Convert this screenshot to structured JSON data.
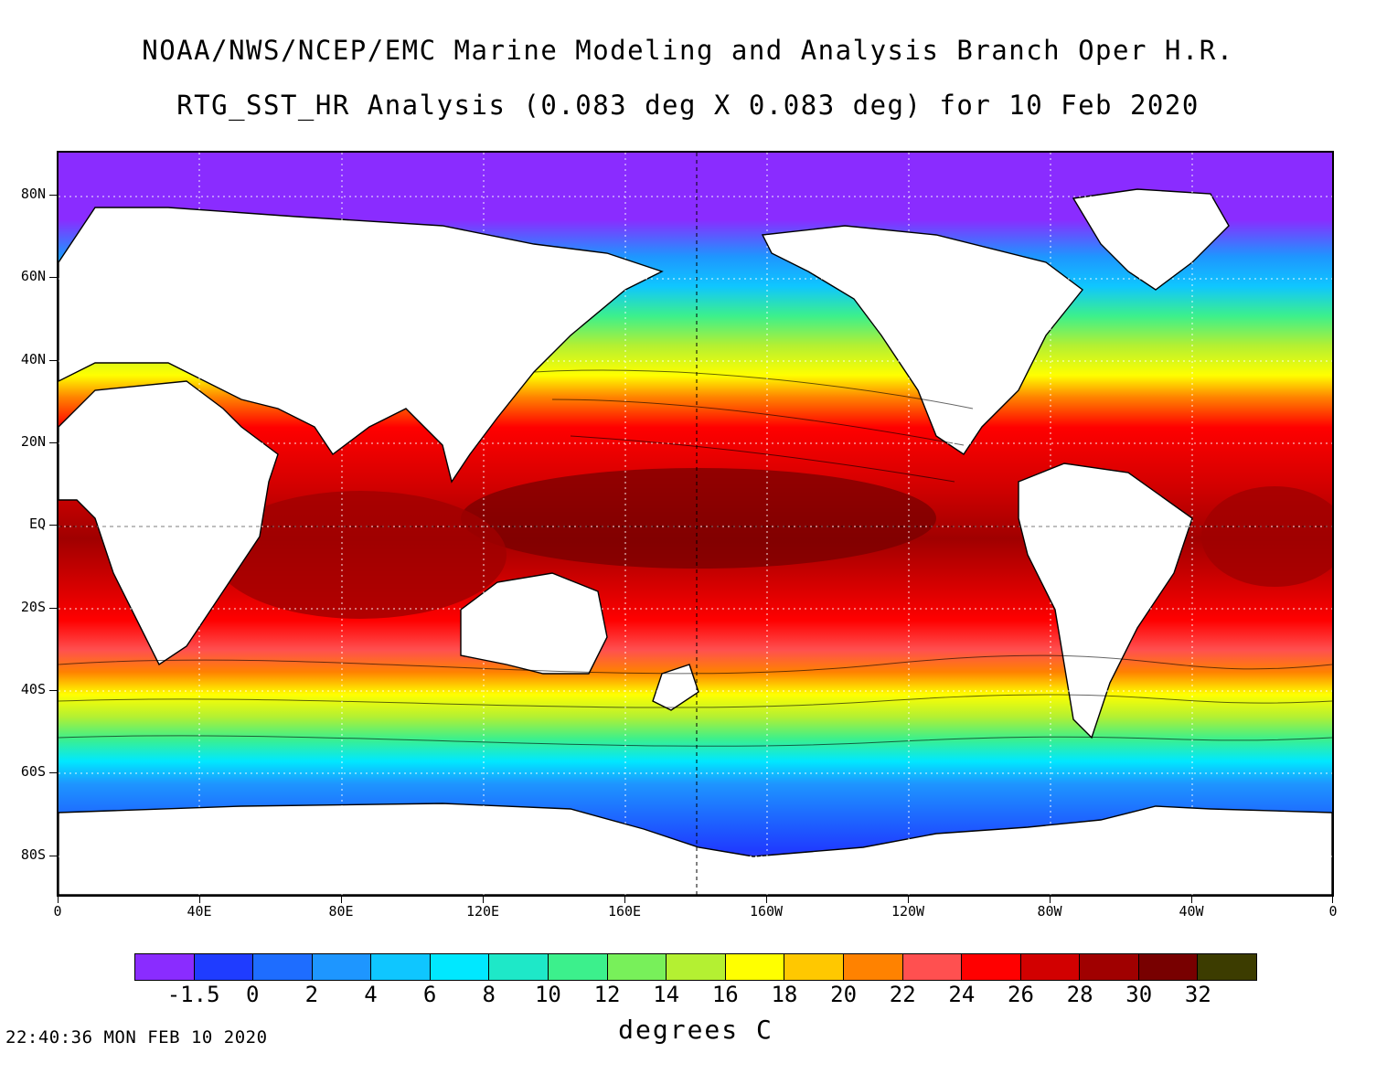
{
  "title_line1": "NOAA/NWS/NCEP/EMC Marine Modeling and Analysis Branch Oper H.R.",
  "title_line2": "RTG_SST_HR Analysis (0.083 deg X 0.083 deg) for 10 Feb 2020",
  "lat_labels": [
    "80N",
    "60N",
    "40N",
    "20N",
    "EQ",
    "20S",
    "40S",
    "60S",
    "80S"
  ],
  "lon_labels": [
    "0",
    "40E",
    "80E",
    "120E",
    "160E",
    "160W",
    "120W",
    "80W",
    "40W",
    "0"
  ],
  "colorbar": {
    "colors": [
      "#8a2cff",
      "#1f3cff",
      "#1e6dff",
      "#1e96ff",
      "#0fc6ff",
      "#00e8ff",
      "#1ee8c8",
      "#3cf08c",
      "#78f05a",
      "#b4f032",
      "#ffff00",
      "#ffc800",
      "#ff8200",
      "#ff5050",
      "#ff0000",
      "#d20000",
      "#a00000",
      "#780000",
      "#3c3c00"
    ],
    "labels": [
      "-1.5",
      "0",
      "2",
      "4",
      "6",
      "8",
      "10",
      "12",
      "14",
      "16",
      "18",
      "20",
      "22",
      "24",
      "26",
      "28",
      "30",
      "32"
    ]
  },
  "units": "degrees C",
  "timestamp": "22:40:36  MON FEB 10 2020"
}
